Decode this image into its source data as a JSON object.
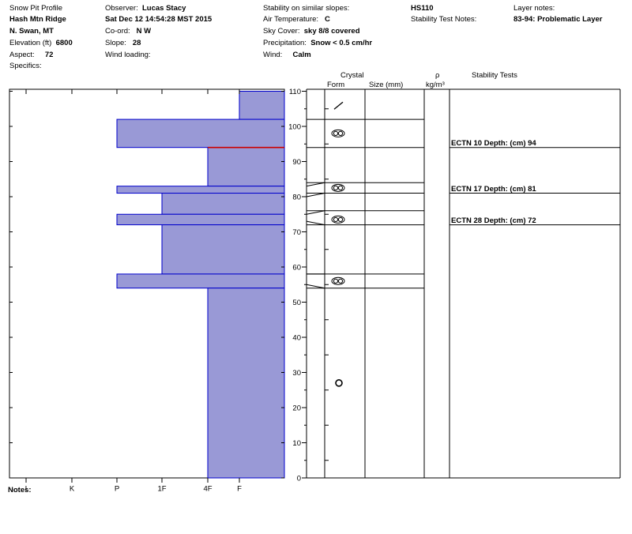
{
  "header": {
    "col1": [
      "Snow Pit Profile",
      "Hash Mtn Ridge",
      "N. Swan, MT"
    ],
    "elevation_label": "Elevation (ft)",
    "elevation_value": "6800",
    "aspect_label": "Aspect:",
    "aspect_value": "72",
    "specifics_label": "Specifics:",
    "observer_label": "Observer:",
    "observer_value": "Lucas Stacy",
    "datetime": "Sat Dec 12 14:54:28 MST 2015",
    "coord_label": "Co-ord:",
    "coord_value": "N W",
    "slope_label": "Slope:",
    "slope_value": "28",
    "wind_loading_label": "Wind loading:",
    "stability_label": "Stability on similar slopes:",
    "air_temp_label": "Air Temperature:",
    "air_temp_value": "C",
    "sky_label": "Sky Cover:",
    "sky_value": "sky 8/8 covered",
    "precip_label": "Precipitation:",
    "precip_value": "Snow < 0.5 cm/hr",
    "wind_label": "Wind:",
    "wind_value": "Calm",
    "hs": "HS110",
    "stability_notes_label": "Stability Test Notes:",
    "layer_notes_label": "Layer notes:",
    "layer_notes_value": "83-94: Problematic Layer"
  },
  "columns": {
    "crystal": "Crystal",
    "form": "Form",
    "size": "Size (mm)",
    "rho": "ρ",
    "density_unit": "kg/m³",
    "stability": "Stability Tests"
  },
  "hardness_labels": [
    "I",
    "K",
    "P",
    "1F",
    "4F",
    "F"
  ],
  "depth_ticks": [
    0,
    10,
    20,
    30,
    40,
    50,
    60,
    70,
    80,
    90,
    100,
    110
  ],
  "notes_label": "Notes:",
  "colors": {
    "layer_fill": "#9999d6",
    "layer_edge": "#0000cc",
    "problem_line": "#cc0000"
  },
  "chart_data": {
    "type": "bar",
    "orientation": "horizontal",
    "y_axis": "depth (cm)",
    "ylim": [
      0,
      110
    ],
    "hardness_scale": [
      "I",
      "K",
      "P",
      "1F",
      "4F",
      "F"
    ],
    "layers": [
      {
        "top": 110,
        "bottom": 102,
        "hardness": "F"
      },
      {
        "top": 102,
        "bottom": 94,
        "hardness": "P"
      },
      {
        "top": 94,
        "bottom": 83,
        "hardness": "4F"
      },
      {
        "top": 83,
        "bottom": 81,
        "hardness": "P"
      },
      {
        "top": 81,
        "bottom": 75,
        "hardness": "1F"
      },
      {
        "top": 75,
        "bottom": 72,
        "hardness": "P"
      },
      {
        "top": 72,
        "bottom": 58,
        "hardness": "1F"
      },
      {
        "top": 58,
        "bottom": 54,
        "hardness": "P"
      },
      {
        "top": 54,
        "bottom": 0,
        "hardness": "4F"
      }
    ],
    "problem_layer_depth": 94,
    "crystal_boundaries": [
      102,
      94,
      84,
      81,
      76,
      72,
      58,
      54
    ],
    "crystals": [
      {
        "depth": 106,
        "form": "decomposing"
      },
      {
        "depth": 98,
        "form": "surface-hoar"
      },
      {
        "depth": 82.5,
        "form": "surface-hoar"
      },
      {
        "depth": 73.5,
        "form": "surface-hoar"
      },
      {
        "depth": 56,
        "form": "surface-hoar"
      },
      {
        "depth": 27,
        "form": "graupel"
      }
    ],
    "stability_tests": [
      {
        "label": "ECTN 10  Depth: (cm) 94",
        "depth": 94
      },
      {
        "label": "ECTN 17  Depth: (cm) 81",
        "depth": 81
      },
      {
        "label": "ECTN 28  Depth: (cm) 72",
        "depth": 72
      }
    ]
  }
}
